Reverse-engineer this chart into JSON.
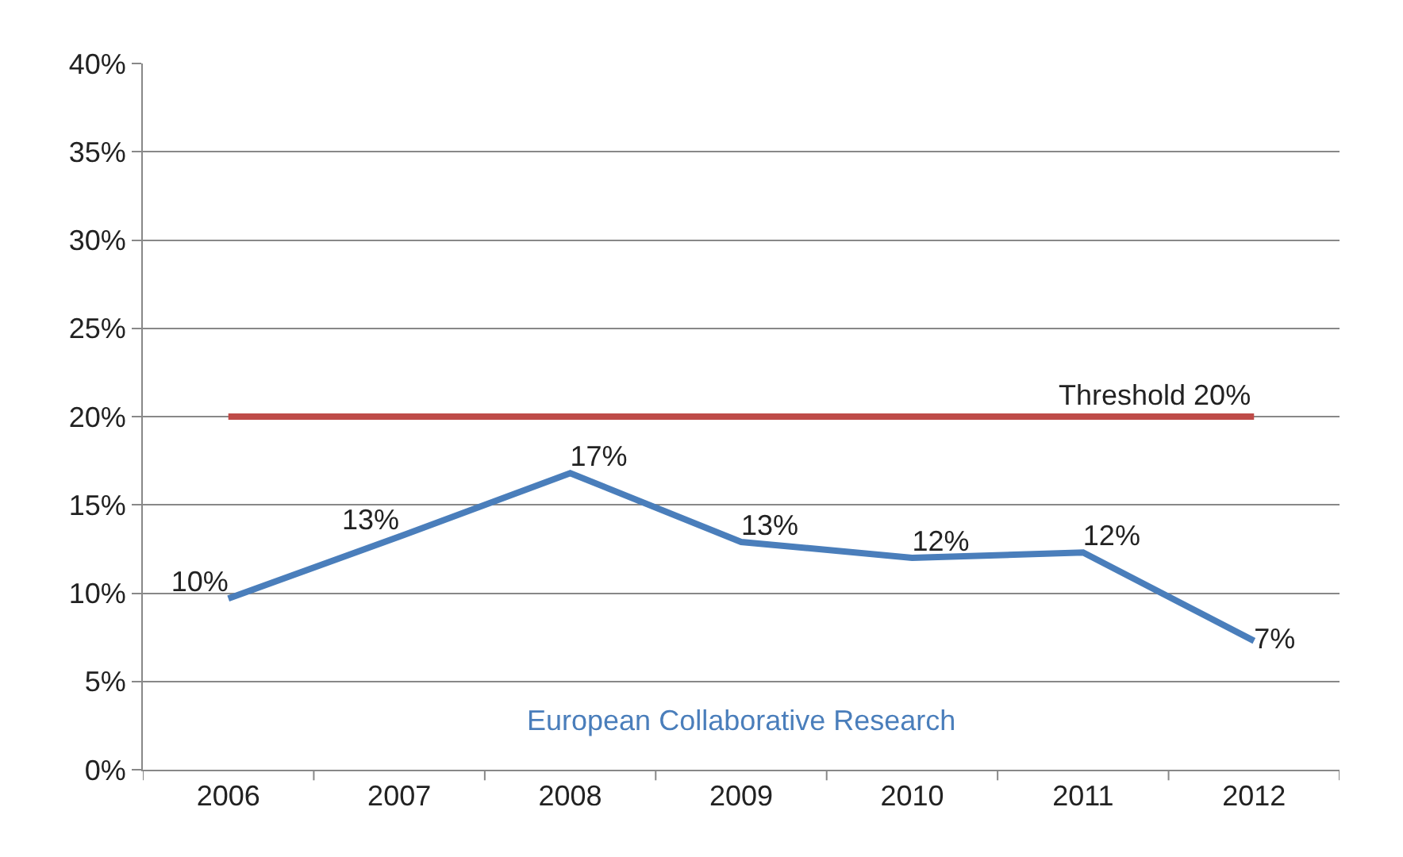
{
  "chart_data": {
    "type": "line",
    "categories": [
      "2006",
      "2007",
      "2008",
      "2009",
      "2010",
      "2011",
      "2012"
    ],
    "series": [
      {
        "name": "European Collaborative Research",
        "color": "#4a7ebb",
        "values": [
          9.7,
          13.2,
          16.8,
          12.9,
          12.0,
          12.3,
          7.3
        ],
        "value_labels": [
          "10%",
          "13%",
          "17%",
          "13%",
          "12%",
          "12%",
          "7%"
        ]
      }
    ],
    "ylim": [
      0,
      40
    ],
    "yticks": [
      {
        "value": 0,
        "label": "0%"
      },
      {
        "value": 5,
        "label": "5%"
      },
      {
        "value": 10,
        "label": "10%"
      },
      {
        "value": 15,
        "label": "15%"
      },
      {
        "value": 20,
        "label": "20%"
      },
      {
        "value": 25,
        "label": "25%"
      },
      {
        "value": 30,
        "label": "30%"
      },
      {
        "value": 35,
        "label": "35%"
      },
      {
        "value": 40,
        "label": "40%"
      }
    ],
    "ref_lines": [
      {
        "axis": "y",
        "value": 20,
        "label": "Threshold 20%",
        "color": "#be4b48"
      }
    ],
    "grid": "y",
    "legend": false,
    "marker": "none",
    "line_style": "solid"
  }
}
